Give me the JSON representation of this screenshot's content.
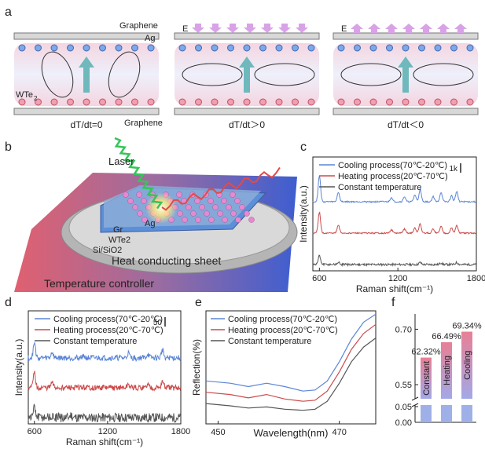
{
  "panels": {
    "a": "a",
    "b": "b",
    "c": "c",
    "d": "d",
    "e": "e",
    "f": "f"
  },
  "panel_a": {
    "diagrams": [
      {
        "title": "dT/dt=0",
        "top": "Graphene",
        "metal": "Ag",
        "material": "WTe2",
        "bottom": "Graphene",
        "field": "",
        "field_dir": "none"
      },
      {
        "title": "dT/dt＞0",
        "field": "E",
        "field_dir": "down"
      },
      {
        "title": "dT/dt＜0",
        "field": "E",
        "field_dir": "up"
      }
    ],
    "material_main": "WTe",
    "material_sub": "2"
  },
  "panel_b": {
    "laser": "Laser",
    "ag": "Ag",
    "gr": "Gr",
    "wte2": "WTe2",
    "si": "Si/SiO2",
    "heat_sheet": "Heat conducting sheet",
    "controller": "Temperature controller"
  },
  "colors": {
    "cooling": "#5b85d6",
    "heating": "#cc4b4b",
    "constant": "#555555",
    "bar_fill": "#9fb0e8",
    "bar_top": "#e58a9a"
  },
  "chart_data": [
    {
      "id": "c",
      "type": "line",
      "xlabel": "Raman shift(cm⁻¹)",
      "ylabel": "Intensity(a.u.)",
      "xlim": [
        550,
        1800
      ],
      "xticks": [
        600,
        1200,
        1800
      ],
      "scale_bar": "1k",
      "series": [
        {
          "name": "Cooling process(70℃-20℃)",
          "offset": 2,
          "peaks": [
            [
              600,
              1.5
            ],
            [
              745,
              0.55
            ],
            [
              1150,
              0.25
            ],
            [
              1250,
              0.3
            ],
            [
              1330,
              0.4
            ],
            [
              1370,
              0.7
            ],
            [
              1470,
              0.3
            ],
            [
              1530,
              0.55
            ],
            [
              1610,
              0.35
            ],
            [
              1650,
              0.6
            ]
          ]
        },
        {
          "name": "Heating process(20℃-70℃)",
          "offset": 1,
          "peaks": [
            [
              600,
              1.2
            ],
            [
              745,
              0.45
            ],
            [
              1150,
              0.2
            ],
            [
              1250,
              0.25
            ],
            [
              1330,
              0.3
            ],
            [
              1370,
              0.55
            ],
            [
              1470,
              0.25
            ],
            [
              1530,
              0.4
            ],
            [
              1610,
              0.3
            ],
            [
              1650,
              0.45
            ]
          ]
        },
        {
          "name": "Constant temperature",
          "offset": 0,
          "peaks": [
            [
              600,
              0.5
            ],
            [
              745,
              0.12
            ],
            [
              1370,
              0.12
            ],
            [
              1530,
              0.1
            ],
            [
              1650,
              0.12
            ]
          ]
        }
      ]
    },
    {
      "id": "d",
      "type": "line",
      "xlabel": "Raman shift(cm⁻¹)",
      "ylabel": "Intensity(a.u.)",
      "xlim": [
        550,
        1800
      ],
      "xticks": [
        600,
        1200,
        1800
      ],
      "scale_bar": "50",
      "series": [
        {
          "name": "Cooling process(70℃-20℃)",
          "offset": 2,
          "peaks": [
            [
              600,
              0.9
            ],
            [
              745,
              0.35
            ],
            [
              1000,
              0.2
            ],
            [
              1370,
              0.3
            ],
            [
              1530,
              0.25
            ],
            [
              1650,
              0.5
            ]
          ]
        },
        {
          "name": "Heating process(20℃-70℃)",
          "offset": 1,
          "peaks": [
            [
              600,
              0.9
            ],
            [
              745,
              0.3
            ],
            [
              1370,
              0.2
            ],
            [
              1530,
              0.2
            ],
            [
              1650,
              0.4
            ]
          ]
        },
        {
          "name": "Constant temperature",
          "offset": 0,
          "peaks": [
            [
              600,
              0.6
            ],
            [
              900,
              0.15
            ]
          ]
        }
      ]
    },
    {
      "id": "e",
      "type": "line",
      "xlabel": "Wavelength(nm)",
      "ylabel": "Reflection(%)",
      "xlim": [
        448,
        476
      ],
      "xticks": [
        450,
        470
      ],
      "series": [
        {
          "name": "Cooling process(70℃-20℃)",
          "x": [
            448,
            452,
            455,
            458,
            461,
            464,
            466,
            468,
            470,
            472,
            474,
            476
          ],
          "y": [
            0.38,
            0.36,
            0.33,
            0.36,
            0.33,
            0.29,
            0.3,
            0.38,
            0.55,
            0.75,
            0.9,
            0.97
          ]
        },
        {
          "name": "Heating process(20℃-70℃)",
          "x": [
            448,
            452,
            455,
            458,
            461,
            464,
            466,
            468,
            470,
            472,
            474,
            476
          ],
          "y": [
            0.28,
            0.26,
            0.23,
            0.26,
            0.22,
            0.2,
            0.21,
            0.29,
            0.46,
            0.66,
            0.8,
            0.88
          ]
        },
        {
          "name": "Constant temperature",
          "x": [
            448,
            452,
            455,
            458,
            461,
            464,
            466,
            468,
            470,
            472,
            474,
            476
          ],
          "y": [
            0.18,
            0.16,
            0.14,
            0.15,
            0.13,
            0.12,
            0.13,
            0.2,
            0.36,
            0.55,
            0.68,
            0.76
          ]
        }
      ]
    },
    {
      "id": "f",
      "type": "bar",
      "categories": [
        "Constant",
        "Heating",
        "Cooling"
      ],
      "values": [
        0.6232,
        0.6649,
        0.6934
      ],
      "value_labels": [
        "62.32%",
        "66.49%",
        "69.34%"
      ],
      "yticks": [
        "0.70",
        "0.55",
        "0.05",
        "0.00"
      ],
      "axis_break": [
        0.05,
        0.55
      ]
    }
  ]
}
